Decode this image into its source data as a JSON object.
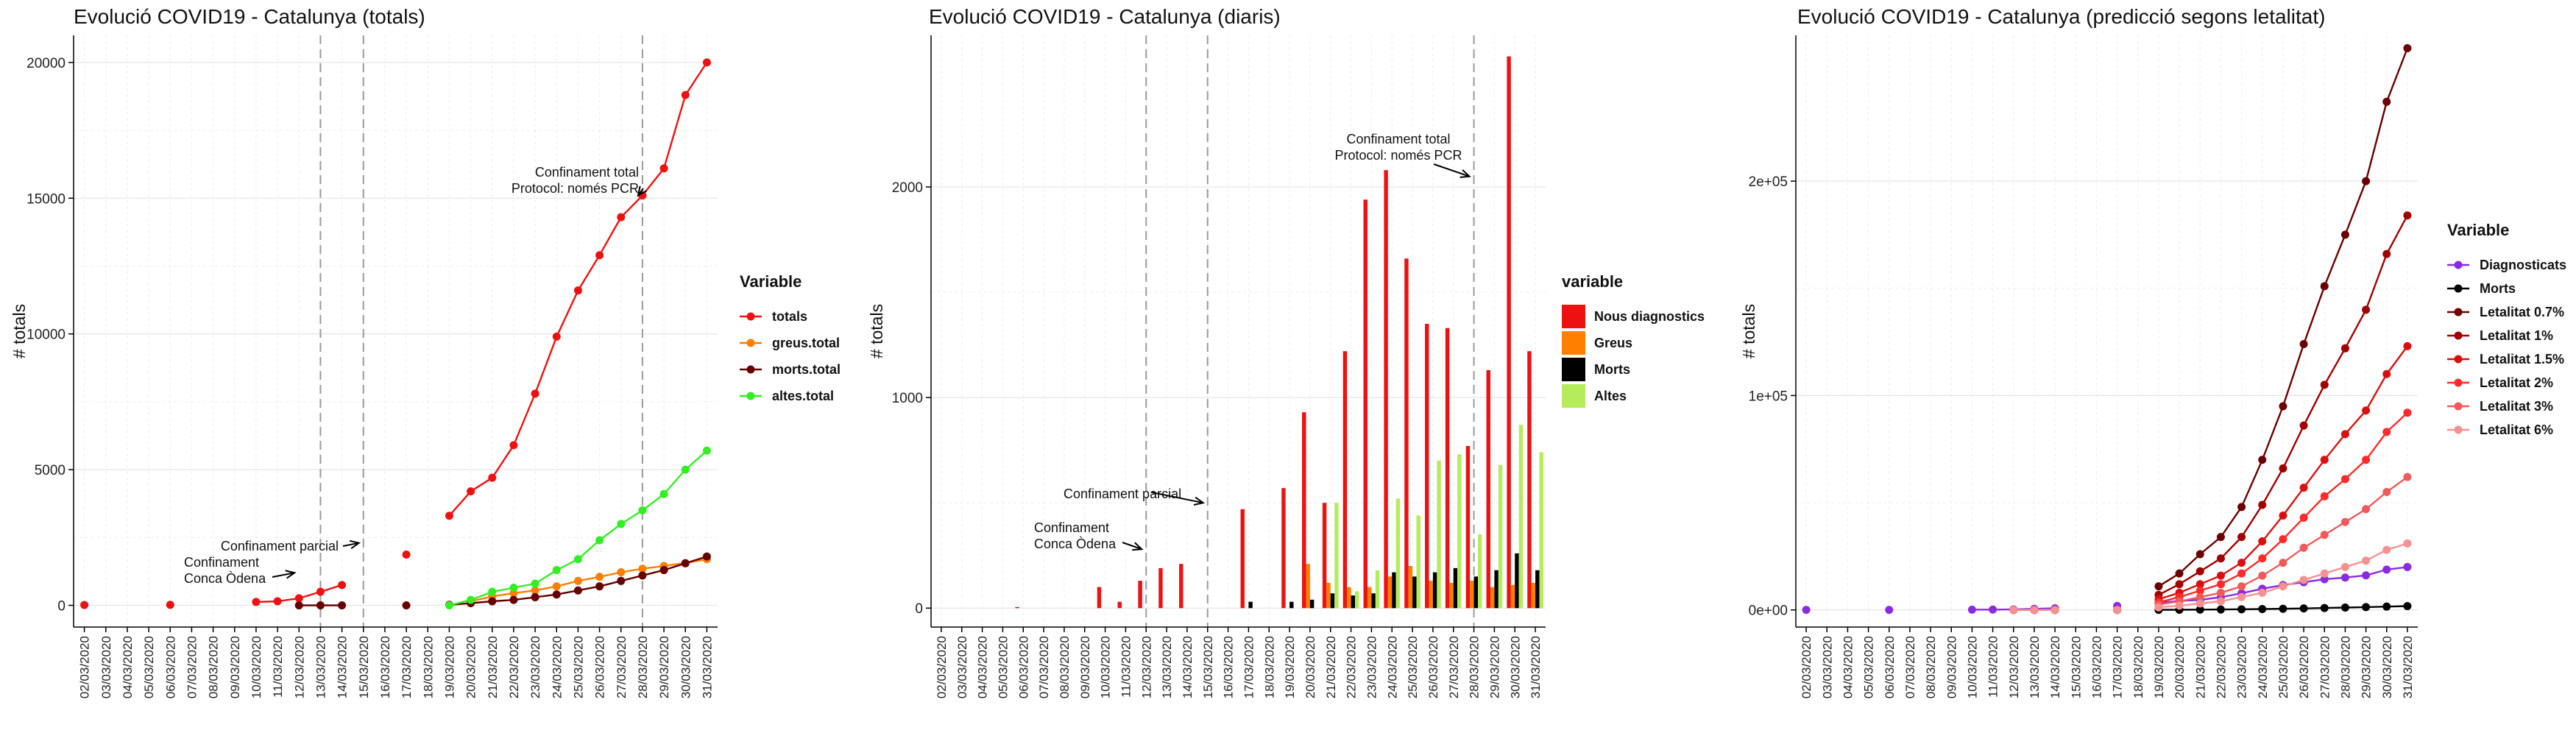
{
  "chart_data": [
    {
      "type": "line",
      "title": "Evolució COVID19 - Catalunya (totals)",
      "xlabel": "",
      "ylabel": "# totals",
      "ylim": [
        -800,
        21000
      ],
      "yticks": [
        0,
        5000,
        10000,
        15000,
        20000
      ],
      "x": [
        "02/03/2020",
        "03/03/2020",
        "04/03/2020",
        "05/03/2020",
        "06/03/2020",
        "07/03/2020",
        "08/03/2020",
        "09/03/2020",
        "10/03/2020",
        "11/03/2020",
        "12/03/2020",
        "13/03/2020",
        "14/03/2020",
        "15/03/2020",
        "16/03/2020",
        "17/03/2020",
        "18/03/2020",
        "19/03/2020",
        "20/03/2020",
        "21/03/2020",
        "22/03/2020",
        "23/03/2020",
        "24/03/2020",
        "25/03/2020",
        "26/03/2020",
        "27/03/2020",
        "28/03/2020",
        "29/03/2020",
        "30/03/2020",
        "31/03/2020"
      ],
      "grid": true,
      "legend": {
        "title": "Variable",
        "position": "right"
      },
      "vlines": [
        "13/03/2020",
        "15/03/2020",
        "28/03/2020"
      ],
      "annotations": [
        {
          "lines": [
            "Confinament total",
            "Protocol: només PCR"
          ],
          "target": [
            "28/03/2020",
            15100
          ]
        },
        {
          "lines": [
            "Confinament parcial"
          ],
          "target": [
            "15/03/2020",
            2300
          ]
        },
        {
          "lines": [
            "Confinament",
            "Conca Òdena"
          ],
          "target": [
            "12/03/2020",
            1200
          ]
        }
      ],
      "series": [
        {
          "name": "totals",
          "color": "#ee1111",
          "values": [
            15,
            null,
            null,
            null,
            20,
            null,
            null,
            null,
            124,
            150,
            260,
            500,
            750,
            null,
            null,
            1870,
            null,
            3300,
            4200,
            4700,
            5900,
            7800,
            9900,
            11600,
            12900,
            14300,
            15100,
            16100,
            18800,
            20000
          ]
        },
        {
          "name": "greus.total",
          "color": "#ff7f00",
          "values": [
            null,
            null,
            null,
            null,
            null,
            null,
            null,
            null,
            null,
            null,
            null,
            null,
            null,
            null,
            null,
            null,
            null,
            null,
            150,
            330,
            450,
            550,
            700,
            900,
            1050,
            1220,
            1350,
            1450,
            1560,
            1700
          ]
        },
        {
          "name": "morts.total",
          "color": "#660000",
          "values": [
            null,
            null,
            null,
            null,
            null,
            null,
            null,
            null,
            null,
            null,
            0,
            0,
            0,
            null,
            null,
            0,
            null,
            20,
            80,
            150,
            200,
            300,
            400,
            550,
            700,
            900,
            1100,
            1300,
            1550,
            1800
          ]
        },
        {
          "name": "altes.total",
          "color": "#33ee22",
          "values": [
            null,
            null,
            null,
            null,
            null,
            null,
            null,
            null,
            null,
            null,
            null,
            null,
            null,
            null,
            null,
            null,
            null,
            0,
            200,
            500,
            650,
            800,
            1300,
            1700,
            2400,
            3000,
            3500,
            4100,
            5000,
            5700
          ]
        }
      ]
    },
    {
      "type": "bar",
      "title": "Evolució COVID19 - Catalunya (diaris)",
      "xlabel": "",
      "ylabel": "# totals",
      "ylim": [
        -90,
        2720
      ],
      "yticks": [
        0,
        1000,
        2000
      ],
      "x": [
        "02/03/2020",
        "03/03/2020",
        "04/03/2020",
        "05/03/2020",
        "06/03/2020",
        "07/03/2020",
        "08/03/2020",
        "09/03/2020",
        "10/03/2020",
        "11/03/2020",
        "12/03/2020",
        "13/03/2020",
        "14/03/2020",
        "15/03/2020",
        "16/03/2020",
        "17/03/2020",
        "18/03/2020",
        "19/03/2020",
        "20/03/2020",
        "21/03/2020",
        "22/03/2020",
        "23/03/2020",
        "24/03/2020",
        "25/03/2020",
        "26/03/2020",
        "27/03/2020",
        "28/03/2020",
        "29/03/2020",
        "30/03/2020",
        "31/03/2020"
      ],
      "grid": true,
      "legend": {
        "title": "variable",
        "position": "right"
      },
      "vlines": [
        "12/03/2020",
        "15/03/2020",
        "28/03/2020"
      ],
      "annotations": [
        {
          "lines": [
            "Confinament total",
            "Protocol: només PCR"
          ],
          "target": [
            "28/03/2020",
            2050
          ]
        },
        {
          "lines": [
            "Confinament parcial"
          ],
          "target": [
            "15/03/2020",
            500
          ]
        },
        {
          "lines": [
            "Confinament",
            "Conca Òdena"
          ],
          "target": [
            "12/03/2020",
            280
          ]
        }
      ],
      "series": [
        {
          "name": "Nous diagnostics",
          "color": "#ee1111",
          "values": [
            0,
            0,
            0,
            0,
            5,
            0,
            0,
            0,
            100,
            30,
            130,
            190,
            210,
            0,
            0,
            470,
            0,
            570,
            930,
            500,
            1220,
            1940,
            2080,
            1660,
            1350,
            1330,
            770,
            1130,
            2620,
            1220
          ]
        },
        {
          "name": "Greus",
          "color": "#ff7f00",
          "values": [
            0,
            0,
            0,
            0,
            0,
            0,
            0,
            0,
            0,
            0,
            0,
            0,
            0,
            0,
            0,
            0,
            0,
            0,
            210,
            120,
            100,
            100,
            150,
            200,
            130,
            120,
            130,
            100,
            110,
            120
          ]
        },
        {
          "name": "Morts",
          "color": "#000000",
          "values": [
            0,
            0,
            0,
            0,
            0,
            0,
            0,
            0,
            0,
            0,
            0,
            0,
            0,
            0,
            0,
            30,
            0,
            30,
            40,
            70,
            60,
            70,
            170,
            150,
            170,
            190,
            150,
            180,
            260,
            180
          ]
        },
        {
          "name": "Altes",
          "color": "#b5ec5c",
          "values": [
            0,
            0,
            0,
            0,
            0,
            0,
            0,
            0,
            0,
            0,
            0,
            0,
            0,
            0,
            0,
            0,
            0,
            0,
            0,
            500,
            80,
            180,
            520,
            440,
            700,
            730,
            350,
            680,
            870,
            740
          ]
        }
      ]
    },
    {
      "type": "line",
      "title": "Evolució COVID19 - Catalunya (predicció segons letalitat)",
      "xlabel": "",
      "ylabel": "# totals",
      "ylim": [
        -8000,
        268000
      ],
      "yticks": [
        0,
        100000,
        200000
      ],
      "ytick_labels": [
        "0e+00",
        "1e+05",
        "2e+05"
      ],
      "x": [
        "02/03/2020",
        "03/03/2020",
        "04/03/2020",
        "05/03/2020",
        "06/03/2020",
        "07/03/2020",
        "08/03/2020",
        "09/03/2020",
        "10/03/2020",
        "11/03/2020",
        "12/03/2020",
        "13/03/2020",
        "14/03/2020",
        "15/03/2020",
        "16/03/2020",
        "17/03/2020",
        "18/03/2020",
        "19/03/2020",
        "20/03/2020",
        "21/03/2020",
        "22/03/2020",
        "23/03/2020",
        "24/03/2020",
        "25/03/2020",
        "26/03/2020",
        "27/03/2020",
        "28/03/2020",
        "29/03/2020",
        "30/03/2020",
        "31/03/2020"
      ],
      "grid": true,
      "legend": {
        "title": "Variable",
        "position": "right"
      },
      "series": [
        {
          "name": "Diagnosticats",
          "color": "#8a2be2",
          "values": [
            15,
            null,
            null,
            null,
            20,
            null,
            null,
            null,
            124,
            150,
            260,
            500,
            750,
            null,
            null,
            1870,
            null,
            3300,
            4200,
            4700,
            5900,
            7800,
            9900,
            11600,
            12900,
            14300,
            15100,
            16100,
            18800,
            20000
          ]
        },
        {
          "name": "Morts",
          "color": "#000000",
          "values": [
            null,
            null,
            null,
            null,
            null,
            null,
            null,
            null,
            null,
            null,
            0,
            0,
            0,
            null,
            null,
            0,
            null,
            20,
            80,
            150,
            200,
            300,
            400,
            550,
            700,
            900,
            1100,
            1300,
            1550,
            1800
          ]
        },
        {
          "name": "Letalitat 0.7%",
          "color": "#6b0000",
          "values": [
            null,
            null,
            null,
            null,
            null,
            null,
            null,
            null,
            null,
            null,
            0,
            0,
            0,
            null,
            null,
            0,
            null,
            11000,
            17000,
            26000,
            34000,
            48000,
            70000,
            95000,
            124000,
            151000,
            175000,
            200000,
            237000,
            262000
          ]
        },
        {
          "name": "Letalitat 1%",
          "color": "#a00000",
          "values": [
            null,
            null,
            null,
            null,
            null,
            null,
            null,
            null,
            null,
            null,
            0,
            0,
            0,
            null,
            null,
            0,
            null,
            7000,
            12000,
            18000,
            24000,
            34000,
            49000,
            66000,
            86000,
            105000,
            122000,
            140000,
            166000,
            184000
          ]
        },
        {
          "name": "Letalitat 1.5%",
          "color": "#d81010",
          "values": [
            null,
            null,
            null,
            null,
            null,
            null,
            null,
            null,
            null,
            null,
            0,
            0,
            0,
            null,
            null,
            0,
            null,
            5000,
            8000,
            12000,
            16000,
            22000,
            32000,
            44000,
            57000,
            70000,
            82000,
            93000,
            110000,
            123000
          ]
        },
        {
          "name": "Letalitat 2%",
          "color": "#ff2a2a",
          "values": [
            null,
            null,
            null,
            null,
            null,
            null,
            null,
            null,
            null,
            null,
            0,
            0,
            0,
            null,
            null,
            0,
            null,
            3500,
            6000,
            9000,
            12000,
            17000,
            24000,
            33000,
            43000,
            53000,
            61000,
            70000,
            83000,
            92000
          ]
        },
        {
          "name": "Letalitat 3%",
          "color": "#f05a5a",
          "values": [
            null,
            null,
            null,
            null,
            null,
            null,
            null,
            null,
            null,
            null,
            0,
            0,
            0,
            null,
            null,
            0,
            null,
            2500,
            4000,
            6000,
            8000,
            11000,
            16000,
            22000,
            29000,
            35000,
            41000,
            47000,
            55000,
            62000
          ]
        },
        {
          "name": "Letalitat 6%",
          "color": "#f79090",
          "values": [
            null,
            null,
            null,
            null,
            null,
            null,
            null,
            null,
            null,
            null,
            0,
            0,
            0,
            null,
            null,
            0,
            null,
            1200,
            2000,
            3000,
            4000,
            6000,
            8000,
            11000,
            14000,
            17000,
            20000,
            23000,
            28000,
            31000
          ]
        }
      ]
    }
  ]
}
